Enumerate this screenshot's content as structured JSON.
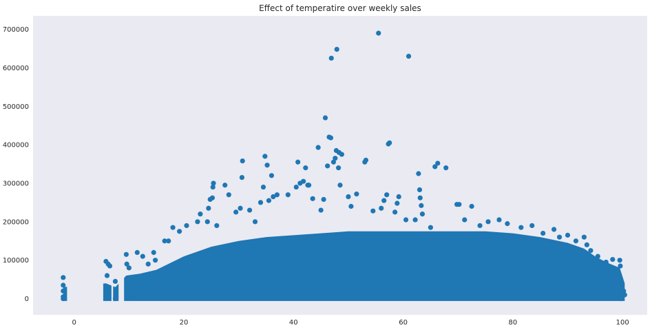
{
  "chart_data": {
    "type": "scatter",
    "title": "Effect of temperatire over weekly sales",
    "xlabel": "",
    "ylabel": "",
    "xlim": [
      -7.5,
      104.5
    ],
    "ylim": [
      -42000,
      735000
    ],
    "grid": false,
    "x_ticks": [
      0,
      20,
      40,
      60,
      80,
      100
    ],
    "x_tick_labels": [
      "0",
      "20",
      "40",
      "60",
      "80",
      "100"
    ],
    "y_ticks": [
      0,
      100000,
      200000,
      300000,
      400000,
      500000,
      600000,
      700000
    ],
    "y_tick_labels": [
      "0",
      "100000",
      "200000",
      "300000",
      "400000",
      "500000",
      "600000",
      "700000"
    ],
    "marker_color": "#1f77b4",
    "background_color": "#eaeaf2",
    "series": [
      {
        "points": [
          [
            -2,
            55000
          ],
          [
            -2,
            35000
          ],
          [
            -2,
            20000
          ],
          [
            -2,
            5000
          ],
          [
            -2,
            0
          ],
          [
            5.8,
            97000
          ],
          [
            6.2,
            90000
          ],
          [
            6.5,
            85000
          ],
          [
            6.0,
            60000
          ],
          [
            6.1,
            30000
          ],
          [
            6.2,
            5000
          ],
          [
            7.5,
            45000
          ],
          [
            7.6,
            20000
          ],
          [
            7.5,
            0
          ],
          [
            9.5,
            115000
          ],
          [
            9.6,
            90000
          ],
          [
            10,
            80000
          ],
          [
            9.7,
            50000
          ],
          [
            9.6,
            20000
          ],
          [
            9.8,
            2000
          ],
          [
            11.5,
            120000
          ],
          [
            12.5,
            110000
          ],
          [
            13.5,
            90000
          ],
          [
            14.5,
            120000
          ],
          [
            14.8,
            100000
          ],
          [
            16.5,
            150000
          ],
          [
            17.2,
            150000
          ],
          [
            18,
            185000
          ],
          [
            19.2,
            175000
          ],
          [
            20.5,
            190000
          ],
          [
            22.5,
            200000
          ],
          [
            23.0,
            220000
          ],
          [
            24.3,
            200000
          ],
          [
            24.5,
            235000
          ],
          [
            24.8,
            258000
          ],
          [
            25.2,
            262000
          ],
          [
            25.3,
            290000
          ],
          [
            25.4,
            300000
          ],
          [
            26.0,
            190000
          ],
          [
            27.5,
            295000
          ],
          [
            28.2,
            270000
          ],
          [
            29.5,
            225000
          ],
          [
            30.3,
            235000
          ],
          [
            30.6,
            315000
          ],
          [
            30.7,
            358000
          ],
          [
            32.0,
            230000
          ],
          [
            33.0,
            200000
          ],
          [
            34.0,
            250000
          ],
          [
            34.5,
            290000
          ],
          [
            34.8,
            370000
          ],
          [
            35.2,
            347000
          ],
          [
            35.5,
            255000
          ],
          [
            36.0,
            320000
          ],
          [
            36.3,
            265000
          ],
          [
            37.0,
            270000
          ],
          [
            39.0,
            270000
          ],
          [
            40.5,
            290000
          ],
          [
            40.8,
            355000
          ],
          [
            41.2,
            300000
          ],
          [
            41.8,
            305000
          ],
          [
            42.2,
            340000
          ],
          [
            42.6,
            295000
          ],
          [
            42.8,
            295000
          ],
          [
            43.5,
            260000
          ],
          [
            44.5,
            393000
          ],
          [
            45.0,
            230000
          ],
          [
            45.5,
            258000
          ],
          [
            45.8,
            470000
          ],
          [
            46.2,
            345000
          ],
          [
            46.5,
            420000
          ],
          [
            46.8,
            418000
          ],
          [
            46.9,
            625000
          ],
          [
            47.3,
            355000
          ],
          [
            47.6,
            365000
          ],
          [
            47.8,
            385000
          ],
          [
            47.9,
            648000
          ],
          [
            48.2,
            340000
          ],
          [
            48.3,
            380000
          ],
          [
            48.5,
            295000
          ],
          [
            48.8,
            375000
          ],
          [
            50.0,
            265000
          ],
          [
            50.5,
            240000
          ],
          [
            51.5,
            272000
          ],
          [
            53.0,
            355000
          ],
          [
            53.2,
            360000
          ],
          [
            54.5,
            228000
          ],
          [
            55.5,
            690000
          ],
          [
            56.0,
            235000
          ],
          [
            56.5,
            255000
          ],
          [
            57.0,
            270000
          ],
          [
            57.3,
            402000
          ],
          [
            57.5,
            405000
          ],
          [
            58.5,
            225000
          ],
          [
            58.9,
            248000
          ],
          [
            59.2,
            265000
          ],
          [
            60.5,
            205000
          ],
          [
            61.0,
            630000
          ],
          [
            62.2,
            205000
          ],
          [
            62.8,
            325000
          ],
          [
            63.0,
            283000
          ],
          [
            63.1,
            262000
          ],
          [
            63.3,
            242000
          ],
          [
            63.5,
            220000
          ],
          [
            65.0,
            185000
          ],
          [
            65.8,
            343000
          ],
          [
            66.3,
            352000
          ],
          [
            67.8,
            340000
          ],
          [
            69.8,
            245000
          ],
          [
            70.2,
            245000
          ],
          [
            71.2,
            205000
          ],
          [
            72.5,
            240000
          ],
          [
            74.0,
            190000
          ],
          [
            75.5,
            200000
          ],
          [
            77.5,
            205000
          ],
          [
            79.0,
            195000
          ],
          [
            81.5,
            185000
          ],
          [
            83.5,
            190000
          ],
          [
            85.5,
            170000
          ],
          [
            87.5,
            180000
          ],
          [
            88.5,
            160000
          ],
          [
            90.0,
            165000
          ],
          [
            91.5,
            150000
          ],
          [
            93.0,
            160000
          ],
          [
            93.5,
            140000
          ],
          [
            94.2,
            125000
          ],
          [
            95.5,
            110000
          ],
          [
            97.0,
            95000
          ],
          [
            98.2,
            102000
          ],
          [
            99.5,
            100000
          ],
          [
            99.6,
            85000
          ],
          [
            99.8,
            40000
          ],
          [
            100.2,
            20000
          ],
          [
            100.4,
            10000
          ],
          [
            99.7,
            0
          ]
        ]
      }
    ],
    "density_band": {
      "x": [
        -2,
        5.8,
        7.5,
        9.5,
        12,
        15,
        20,
        25,
        30,
        35,
        40,
        45,
        50,
        55,
        60,
        65,
        70,
        75,
        80,
        85,
        90,
        93,
        95,
        97,
        99.5,
        100.4
      ],
      "y_top": [
        30000,
        40000,
        30000,
        60000,
        65000,
        75000,
        110000,
        135000,
        150000,
        160000,
        165000,
        170000,
        175000,
        175000,
        175000,
        175000,
        175000,
        175000,
        170000,
        160000,
        145000,
        130000,
        110000,
        95000,
        80000,
        40000
      ]
    }
  }
}
